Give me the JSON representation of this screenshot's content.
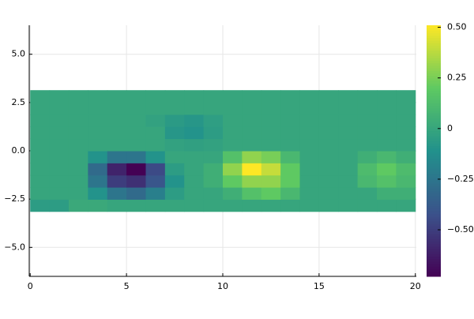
{
  "chart_data": {
    "type": "heatmap",
    "xbins": [
      0,
      1,
      2,
      3,
      4,
      5,
      6,
      7,
      8,
      9,
      10,
      11,
      12,
      13,
      14,
      15,
      16,
      17,
      18,
      19,
      20
    ],
    "ybins": [
      -3.14,
      -2.512,
      -1.884,
      -1.256,
      -0.628,
      0,
      0.628,
      1.256,
      1.884,
      2.512,
      3.14
    ],
    "z": [
      [
        -0.05,
        -0.05,
        0.02,
        0.02,
        0,
        0,
        0,
        0,
        0,
        0,
        0,
        0,
        0,
        0,
        0,
        0,
        0,
        0,
        0,
        0
      ],
      [
        0,
        0,
        0,
        -0.1,
        -0.25,
        -0.3,
        -0.2,
        -0.05,
        0,
        0,
        0.05,
        0.15,
        0.2,
        0.1,
        0,
        0,
        0,
        0,
        0.05,
        0.05
      ],
      [
        0,
        0,
        0,
        -0.25,
        -0.5,
        -0.55,
        -0.4,
        -0.1,
        0,
        0.05,
        0.2,
        0.3,
        0.3,
        0.2,
        0,
        0,
        0,
        0.1,
        0.15,
        0.1
      ],
      [
        0,
        0,
        0,
        -0.3,
        -0.6,
        -0.73,
        -0.45,
        -0.05,
        0,
        0.05,
        0.3,
        0.51,
        0.4,
        0.2,
        0,
        0,
        0,
        0.12,
        0.2,
        0.12
      ],
      [
        0,
        0,
        0,
        -0.1,
        -0.25,
        -0.25,
        -0.1,
        0,
        0,
        0,
        0.15,
        0.3,
        0.25,
        0.1,
        0,
        0,
        0,
        0.05,
        0.1,
        0.05
      ],
      [
        0,
        0,
        0,
        0,
        0,
        0,
        0,
        -0.02,
        -0.03,
        -0.02,
        0,
        0,
        0,
        0,
        0,
        0,
        0,
        0,
        0,
        0
      ],
      [
        0,
        0,
        0,
        0,
        0,
        0,
        0,
        -0.08,
        -0.1,
        -0.05,
        0,
        0,
        0,
        0,
        0,
        0,
        0,
        0,
        0,
        0
      ],
      [
        0,
        0,
        0,
        0,
        0,
        0,
        -0.02,
        -0.06,
        -0.08,
        -0.04,
        0,
        0,
        0,
        0,
        0,
        0,
        0,
        0,
        0,
        0
      ],
      [
        0,
        0,
        0,
        0,
        0,
        0,
        0,
        0,
        0,
        0,
        0,
        0,
        0,
        0,
        0,
        0,
        0,
        0,
        0,
        0
      ],
      [
        0,
        0,
        0,
        0,
        0,
        0,
        0,
        0,
        0,
        0,
        0,
        0,
        0,
        0,
        0,
        0,
        0,
        0,
        0,
        0
      ]
    ],
    "xlim": [
      -0.05,
      20.05
    ],
    "ylim": [
      -6.5,
      6.5
    ],
    "xticks": [
      0,
      5,
      10,
      15,
      20
    ],
    "yticks": [
      {
        "value": -5,
        "label": "−5.0"
      },
      {
        "value": -2.5,
        "label": "−2.5"
      },
      {
        "value": 0,
        "label": "0.0"
      },
      {
        "value": 2.5,
        "label": "2.5"
      },
      {
        "value": 5,
        "label": "5.0"
      }
    ],
    "clim": [
      -0.73,
      0.51
    ],
    "cticks": [
      {
        "value": -0.5,
        "label": "−0.50"
      },
      {
        "value": -0.25,
        "label": "−0.25"
      },
      0,
      {
        "value": 0.25,
        "label": "0.25"
      },
      {
        "value": 0.5,
        "label": "0.50"
      }
    ],
    "colormap": [
      "#440154",
      "#3b528b",
      "#21918c",
      "#5ec962",
      "#fde725"
    ],
    "grid": true
  }
}
